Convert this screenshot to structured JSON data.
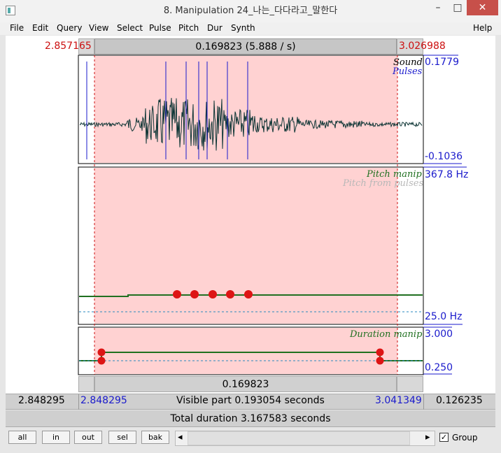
{
  "window": {
    "title": "8. Manipulation 24_나는_다다라고_말한다",
    "controls": {
      "minimize": "–",
      "maximize": "□",
      "close": "✕"
    }
  },
  "menu": [
    "File",
    "Edit",
    "Query",
    "View",
    "Select",
    "Pulse",
    "Pitch",
    "Dur",
    "Synth",
    "Help"
  ],
  "top_bar": {
    "left_time": "2.857165",
    "selection": "0.169823 (5.888 / s)",
    "right_time": "3.026988"
  },
  "sound_panel": {
    "label_sound": "Sound",
    "label_pulses": "Pulses",
    "max": "0.1779",
    "min": "-0.1036"
  },
  "pitch_panel": {
    "label_manip": "Pitch manip",
    "label_from_pulses": "Pitch from pulses",
    "max": "367.8 Hz",
    "min": "25.0 Hz",
    "points_count": 5
  },
  "duration_panel": {
    "label": "Duration manip",
    "max": "3.000",
    "min": "0.250"
  },
  "bottom_bar": {
    "selection": "0.169823"
  },
  "status": {
    "left_start": "2.848295",
    "visible_start": "2.848295",
    "visible_text": "Visible part 0.193054 seconds",
    "visible_end": "3.041349",
    "right_rest": "0.126235",
    "total_text": "Total duration 3.167583 seconds"
  },
  "buttons": {
    "all": "all",
    "in": "in",
    "out": "out",
    "sel": "sel",
    "bak": "bak"
  },
  "scroll": {
    "left_arrow": "◂",
    "right_arrow": "▸"
  },
  "group": {
    "label": "Group",
    "checked": true
  },
  "colors": {
    "selection_fill": "#ffd2d2",
    "red": "#cc1010",
    "blue": "#1a1acc",
    "pitch_line": "#207020",
    "point": "#dd1515"
  }
}
